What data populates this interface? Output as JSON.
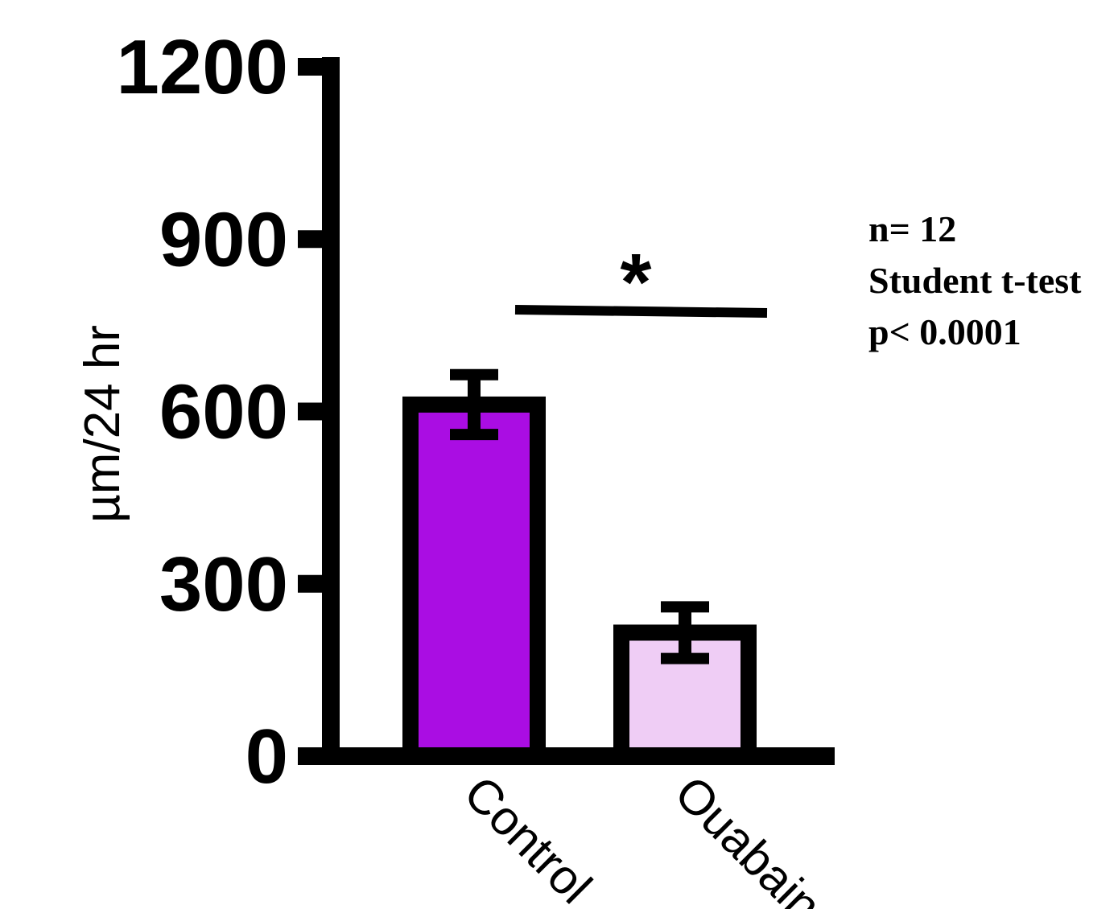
{
  "chart_data": {
    "type": "bar",
    "title": "",
    "xlabel": "",
    "ylabel": "µm/24 hr",
    "ylim": [
      0,
      1200
    ],
    "yticks": [
      0,
      300,
      600,
      900,
      1200
    ],
    "ytick_labels": [
      "0",
      "300",
      "600",
      "900",
      "1200"
    ],
    "categories": [
      "Control",
      "Ouabain"
    ],
    "values": [
      612,
      215
    ],
    "errors": [
      52,
      45
    ],
    "bar_colors": [
      "#AA0DE3",
      "#EFCDF5"
    ],
    "grid": false,
    "significance": {
      "between": [
        "Control",
        "Ouabain"
      ],
      "label": "*"
    },
    "annotations": [
      "n= 12",
      "Student t-test",
      "p< 0.0001"
    ]
  }
}
